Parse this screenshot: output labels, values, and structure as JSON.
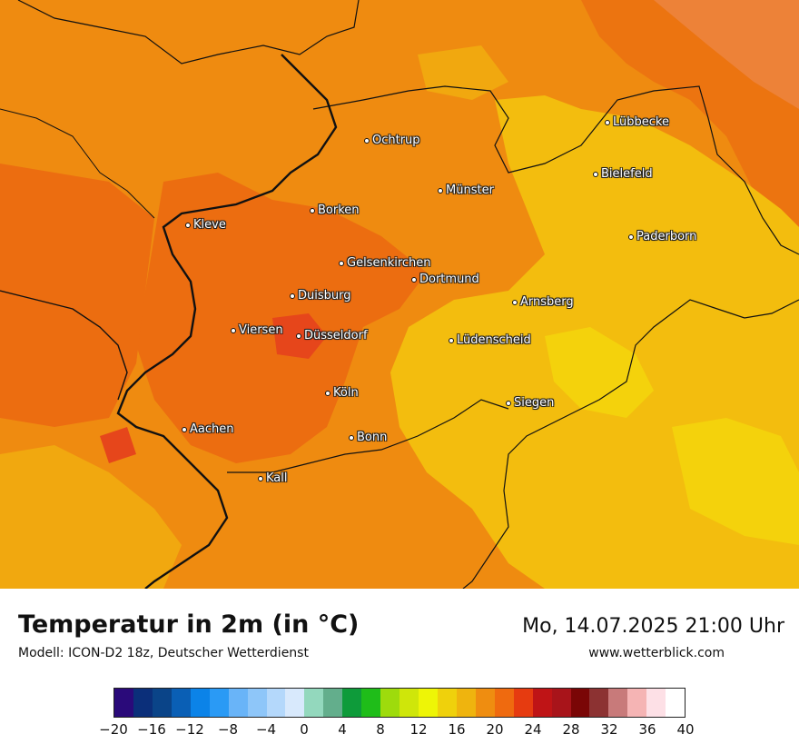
{
  "map": {
    "cities": [
      {
        "id": "oechtrup",
        "label": "Ochtrup"
      },
      {
        "id": "luebbecke",
        "label": "Lübbecke"
      },
      {
        "id": "bielefeld",
        "label": "Bielefeld"
      },
      {
        "id": "muenster",
        "label": "Münster"
      },
      {
        "id": "borken",
        "label": "Borken"
      },
      {
        "id": "kleve",
        "label": "Kleve"
      },
      {
        "id": "paderborn",
        "label": "Paderborn"
      },
      {
        "id": "gelsenkirchen",
        "label": "Gelsenkirchen"
      },
      {
        "id": "dortmund",
        "label": "Dortmund"
      },
      {
        "id": "duisburg",
        "label": "Duisburg"
      },
      {
        "id": "arnsberg",
        "label": "Arnsberg"
      },
      {
        "id": "viersen",
        "label": "Viersen"
      },
      {
        "id": "duesseldorf",
        "label": "Düsseldorf"
      },
      {
        "id": "luedenscheid",
        "label": "Lüdenscheid"
      },
      {
        "id": "koeln",
        "label": "Köln"
      },
      {
        "id": "siegen",
        "label": "Siegen"
      },
      {
        "id": "aachen",
        "label": "Aachen"
      },
      {
        "id": "bonn",
        "label": "Bonn"
      },
      {
        "id": "kall",
        "label": "Kall"
      }
    ]
  },
  "footer": {
    "title": "Temperatur in 2m (in °C)",
    "model": "Modell: ICON-D2 18z, Deutscher Wetterdienst",
    "datetime": "Mo, 14.07.2025 21:00 Uhr",
    "site": "www.wetterblick.com"
  },
  "legend": {
    "min": -20,
    "max": 40,
    "step": 2,
    "tick_labels": [
      "−20",
      "−16",
      "−12",
      "−8",
      "−4",
      "0",
      "4",
      "8",
      "12",
      "16",
      "20",
      "24",
      "28",
      "32",
      "36",
      "40"
    ],
    "colors": [
      "#2a0a7a",
      "#0b2f7a",
      "#0a4488",
      "#0a5fb5",
      "#0b83e8",
      "#2a9af5",
      "#69b4f8",
      "#8ec6f9",
      "#b4d8fb",
      "#d8e9fc",
      "#93d8bd",
      "#63ae8c",
      "#0e9b3a",
      "#1fbd19",
      "#9edb0c",
      "#cfe60a",
      "#eef506",
      "#efd10c",
      "#efb40e",
      "#ef8d10",
      "#ef6a0f",
      "#e63b10",
      "#bf1416",
      "#a8141a",
      "#7a0606",
      "#8c3232",
      "#c87a7a",
      "#f5b4b4",
      "#fde0e6",
      "#ffffff"
    ]
  },
  "colors": {
    "warm_orange": "#ee8610",
    "deep_orange": "#ec6d10",
    "amber": "#f1a80f",
    "yellow": "#f3bd0e",
    "bright_yellow": "#f4d20c",
    "border_line": "#111111"
  }
}
